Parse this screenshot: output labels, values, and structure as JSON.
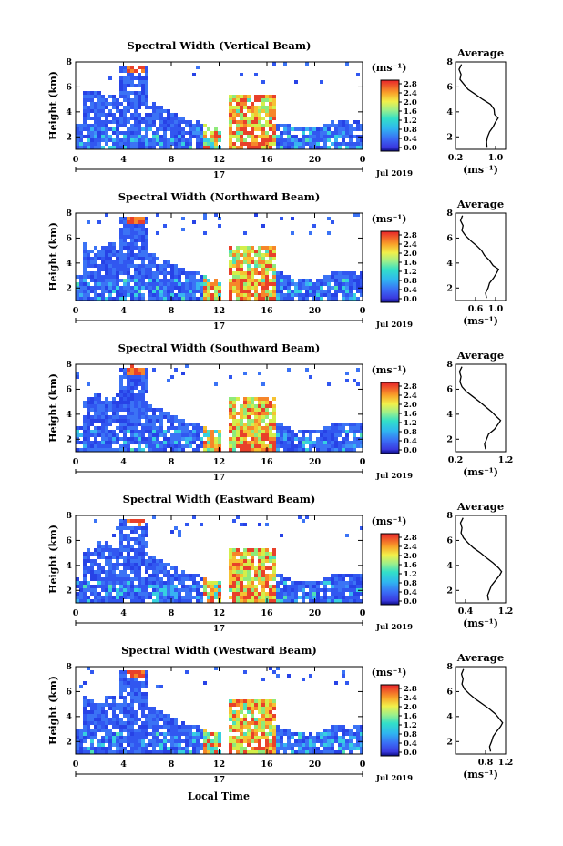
{
  "figure": {
    "xlabel": "Local Time",
    "day_label": "17",
    "date_label": "Jul 2019",
    "ylabel": "Height (km)",
    "cbar_unit": "(ms⁻¹)",
    "avg_title": "Average",
    "avg_xlabel": "(ms⁻¹)"
  },
  "chart_data": [
    {
      "type": "heatmap",
      "title": "Spectral Width (Vertical Beam)",
      "xlabel": "Local Time",
      "ylabel": "Height (km)",
      "x_ticks": [
        "0",
        "4",
        "8",
        "12",
        "16",
        "20",
        "0"
      ],
      "y_ticks": [
        "2",
        "4",
        "6",
        "8"
      ],
      "xlim": [
        0,
        24
      ],
      "ylim": [
        1,
        8
      ],
      "colorbar": {
        "ticks": [
          "0.0",
          "0.4",
          "0.8",
          "1.2",
          "1.6",
          "2.0",
          "2.4",
          "2.8"
        ],
        "range": [
          0.0,
          3.0
        ]
      },
      "average": {
        "xlim": [
          0.2,
          1.2
        ],
        "x_ticks": [
          "0.2",
          "1.0"
        ],
        "ylim": [
          1,
          8
        ],
        "y_ticks": [
          "2",
          "4",
          "6",
          "8"
        ],
        "heights": [
          1.2,
          1.6,
          2.0,
          2.4,
          2.8,
          3.2,
          3.5,
          3.8,
          4.2,
          4.6,
          5.0,
          5.4,
          5.8,
          6.2,
          6.6,
          7.0,
          7.4,
          7.8
        ],
        "values": [
          0.83,
          0.82,
          0.84,
          0.88,
          0.95,
          1.0,
          1.05,
          0.98,
          0.97,
          0.9,
          0.74,
          0.6,
          0.45,
          0.37,
          0.29,
          0.31,
          0.27,
          0.32
        ]
      }
    },
    {
      "type": "heatmap",
      "title": "Spectral Width (Northward Beam)",
      "xlabel": "Local Time",
      "ylabel": "Height (km)",
      "x_ticks": [
        "0",
        "4",
        "8",
        "12",
        "16",
        "20",
        "0"
      ],
      "y_ticks": [
        "2",
        "4",
        "6",
        "8"
      ],
      "xlim": [
        0,
        24
      ],
      "ylim": [
        1,
        8
      ],
      "colorbar": {
        "ticks": [
          "0.0",
          "0.4",
          "0.8",
          "1.2",
          "1.6",
          "2.0",
          "2.4",
          "2.8"
        ],
        "range": [
          0.0,
          3.0
        ]
      },
      "average": {
        "xlim": [
          0.2,
          1.2
        ],
        "x_ticks": [
          "0.6",
          "1.0"
        ],
        "ylim": [
          1,
          8
        ],
        "y_ticks": [
          "2",
          "4",
          "6",
          "8"
        ],
        "heights": [
          1.2,
          1.6,
          2.0,
          2.4,
          2.8,
          3.2,
          3.5,
          3.8,
          4.2,
          4.6,
          5.0,
          5.4,
          5.8,
          6.2,
          6.6,
          7.0,
          7.4,
          7.8
        ],
        "values": [
          0.82,
          0.8,
          0.85,
          0.88,
          0.96,
          1.02,
          1.06,
          0.95,
          0.88,
          0.78,
          0.72,
          0.62,
          0.5,
          0.4,
          0.33,
          0.35,
          0.3,
          0.34
        ]
      }
    },
    {
      "type": "heatmap",
      "title": "Spectral Width (Southward Beam)",
      "xlabel": "Local Time",
      "ylabel": "Height (km)",
      "x_ticks": [
        "0",
        "4",
        "8",
        "12",
        "16",
        "20",
        "0"
      ],
      "y_ticks": [
        "2",
        "4",
        "6",
        "8"
      ],
      "xlim": [
        0,
        24
      ],
      "ylim": [
        1,
        8
      ],
      "colorbar": {
        "ticks": [
          "0.0",
          "0.4",
          "0.8",
          "1.2",
          "1.6",
          "2.0",
          "2.4",
          "2.8"
        ],
        "range": [
          0.0,
          3.0
        ]
      },
      "average": {
        "xlim": [
          0.2,
          1.2
        ],
        "x_ticks": [
          "0.2",
          "1.2"
        ],
        "ylim": [
          1,
          8
        ],
        "y_ticks": [
          "2",
          "4",
          "6",
          "8"
        ],
        "heights": [
          1.2,
          1.6,
          2.0,
          2.4,
          2.8,
          3.2,
          3.5,
          3.8,
          4.2,
          4.6,
          5.0,
          5.4,
          5.8,
          6.2,
          6.6,
          7.0,
          7.4,
          7.8
        ],
        "values": [
          0.8,
          0.78,
          0.82,
          0.86,
          0.98,
          1.05,
          1.1,
          1.02,
          0.92,
          0.8,
          0.68,
          0.55,
          0.42,
          0.33,
          0.29,
          0.31,
          0.28,
          0.33
        ]
      }
    },
    {
      "type": "heatmap",
      "title": "Spectral Width (Eastward Beam)",
      "xlabel": "Local Time",
      "ylabel": "Height (km)",
      "x_ticks": [
        "0",
        "4",
        "8",
        "12",
        "16",
        "20",
        "0"
      ],
      "y_ticks": [
        "2",
        "4",
        "6",
        "8"
      ],
      "xlim": [
        0,
        24
      ],
      "ylim": [
        1,
        8
      ],
      "colorbar": {
        "ticks": [
          "0.0",
          "0.4",
          "0.8",
          "1.2",
          "1.6",
          "2.0",
          "2.4",
          "2.8"
        ],
        "range": [
          0.0,
          3.0
        ]
      },
      "average": {
        "xlim": [
          0.2,
          1.2
        ],
        "x_ticks": [
          "0.4",
          "1.2"
        ],
        "ylim": [
          1,
          8
        ],
        "y_ticks": [
          "2",
          "4",
          "6",
          "8"
        ],
        "heights": [
          1.2,
          1.6,
          2.0,
          2.4,
          2.8,
          3.2,
          3.5,
          3.8,
          4.2,
          4.6,
          5.0,
          5.4,
          5.8,
          6.2,
          6.6,
          7.0,
          7.4,
          7.8
        ],
        "values": [
          0.86,
          0.84,
          0.88,
          0.92,
          1.0,
          1.08,
          1.12,
          1.06,
          0.95,
          0.82,
          0.7,
          0.56,
          0.45,
          0.36,
          0.31,
          0.33,
          0.3,
          0.35
        ]
      }
    },
    {
      "type": "heatmap",
      "title": "Spectral Width (Westward Beam)",
      "xlabel": "Local Time",
      "ylabel": "Height (km)",
      "x_ticks": [
        "0",
        "4",
        "8",
        "12",
        "16",
        "20",
        "0"
      ],
      "y_ticks": [
        "2",
        "4",
        "6",
        "8"
      ],
      "xlim": [
        0,
        24
      ],
      "ylim": [
        1,
        8
      ],
      "colorbar": {
        "ticks": [
          "0.0",
          "0.4",
          "0.8",
          "1.2",
          "1.6",
          "2.0",
          "2.4",
          "2.8"
        ],
        "range": [
          0.0,
          3.0
        ]
      },
      "average": {
        "xlim": [
          0.2,
          1.2
        ],
        "x_ticks": [
          "0.8",
          "1.2"
        ],
        "ylim": [
          1,
          8
        ],
        "y_ticks": [
          "2",
          "4",
          "6",
          "8"
        ],
        "heights": [
          1.2,
          1.6,
          2.0,
          2.4,
          2.8,
          3.2,
          3.5,
          3.8,
          4.2,
          4.6,
          5.0,
          5.4,
          5.8,
          6.2,
          6.6,
          7.0,
          7.4,
          7.8
        ],
        "values": [
          0.9,
          0.88,
          0.92,
          0.95,
          1.02,
          1.1,
          1.14,
          1.08,
          1.0,
          0.88,
          0.74,
          0.6,
          0.48,
          0.38,
          0.33,
          0.35,
          0.32,
          0.36
        ]
      }
    }
  ]
}
